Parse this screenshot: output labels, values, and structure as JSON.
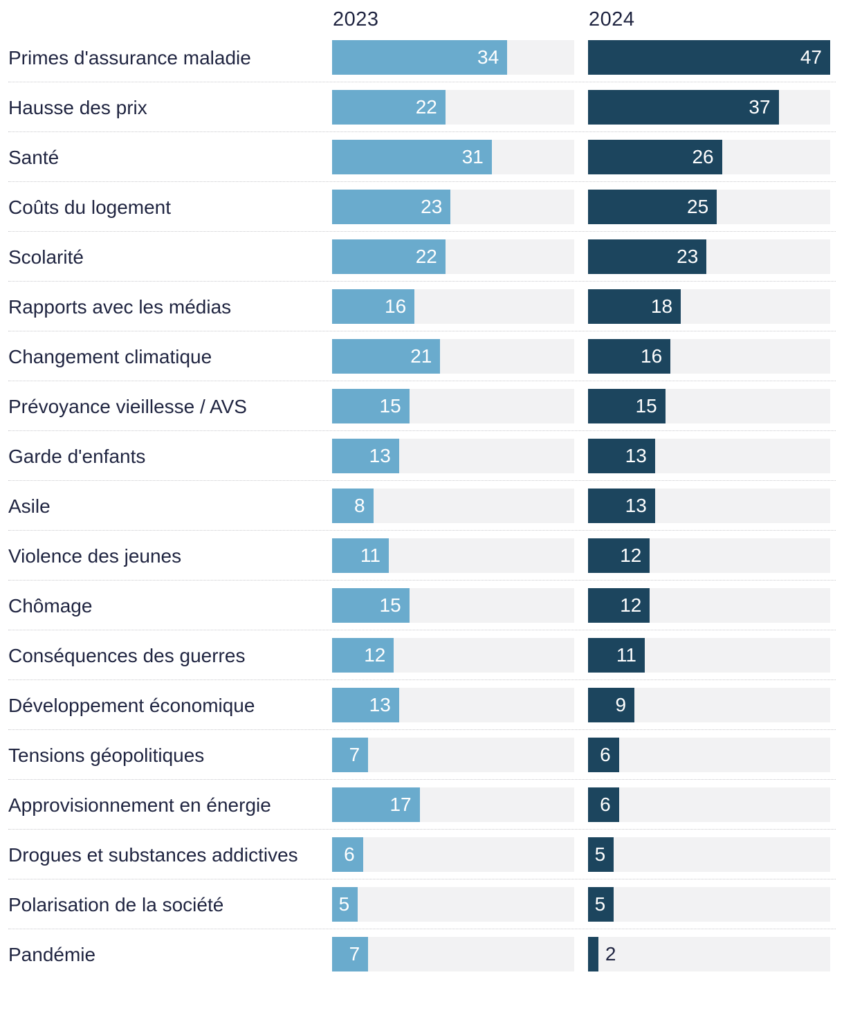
{
  "chart_data": {
    "type": "bar",
    "orientation": "horizontal",
    "xlim": [
      0,
      47
    ],
    "series": [
      {
        "name": "2023",
        "color": "#6aabcd",
        "values": [
          34,
          22,
          31,
          23,
          22,
          16,
          21,
          15,
          13,
          8,
          11,
          15,
          12,
          13,
          7,
          17,
          6,
          5,
          7
        ]
      },
      {
        "name": "2024",
        "color": "#1c455e",
        "values": [
          47,
          37,
          26,
          25,
          23,
          18,
          16,
          15,
          13,
          13,
          12,
          12,
          11,
          9,
          6,
          6,
          5,
          5,
          2
        ]
      }
    ],
    "categories": [
      "Primes d'assurance maladie",
      "Hausse des prix",
      "Santé",
      "Coûts du logement",
      "Scolarité",
      "Rapports avec les médias",
      "Changement climatique",
      "Prévoyance vieillesse / AVS",
      "Garde d'enfants",
      "Asile",
      "Violence des jeunes",
      "Chômage",
      "Conséquences des guerres",
      "Développement économique",
      "Tensions géopolitiques",
      "Approvisionnement en énergie",
      "Drogues et substances addictives",
      "Polarisation de la société",
      "Pandémie"
    ],
    "track_color": "#f2f2f3"
  }
}
